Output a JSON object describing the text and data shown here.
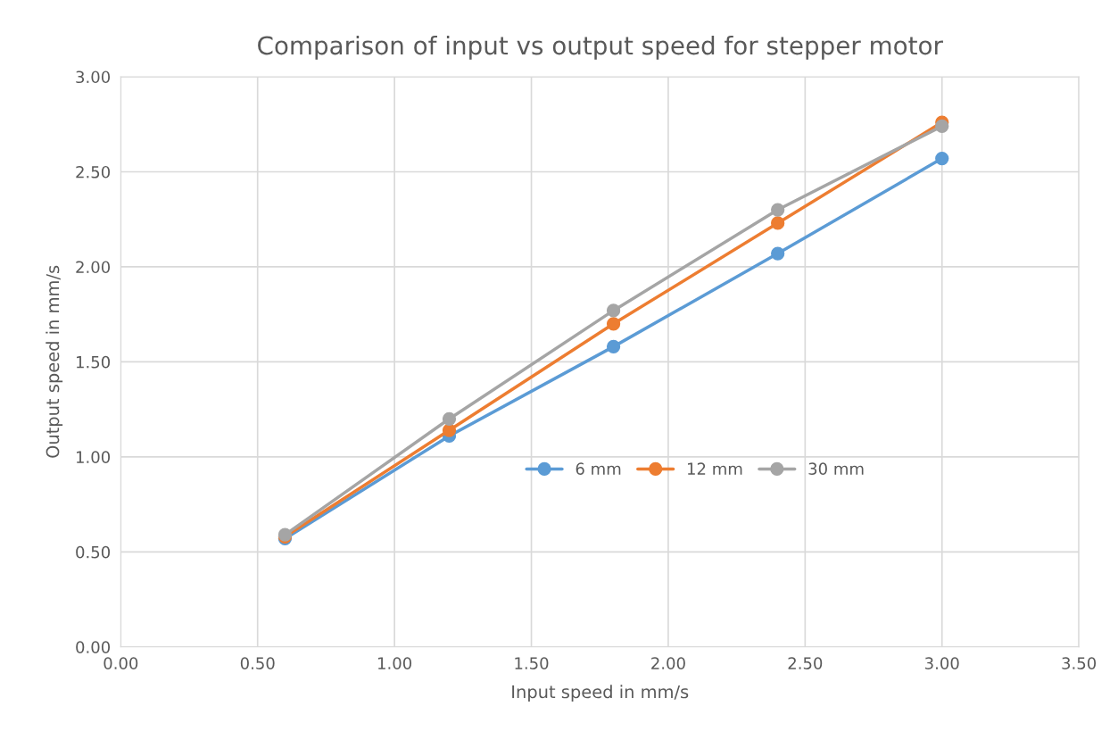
{
  "chart_data": {
    "type": "line",
    "title": "Comparison of input vs output speed for stepper motor",
    "xlabel": "Input speed in mm/s",
    "ylabel": "Output speed in mm/s",
    "x": [
      0.6,
      1.2,
      1.8,
      2.4,
      3.0
    ],
    "series": [
      {
        "name": "6 mm",
        "color": "#5b9bd5",
        "values": [
          0.57,
          1.11,
          1.58,
          2.07,
          2.57
        ]
      },
      {
        "name": "12 mm",
        "color": "#ed7d31",
        "values": [
          0.58,
          1.14,
          1.7,
          2.23,
          2.76
        ]
      },
      {
        "name": "30 mm",
        "color": "#a5a5a5",
        "values": [
          0.59,
          1.2,
          1.77,
          2.3,
          2.74
        ]
      }
    ],
    "xlim": [
      0,
      3.5
    ],
    "ylim": [
      0,
      3
    ],
    "xticks": [
      {
        "value": 0,
        "label": "0.00"
      },
      {
        "value": 0.5,
        "label": "0.50"
      },
      {
        "value": 1,
        "label": "1.00"
      },
      {
        "value": 1.5,
        "label": "1.50"
      },
      {
        "value": 2,
        "label": "2.00"
      },
      {
        "value": 2.5,
        "label": "2.50"
      },
      {
        "value": 3,
        "label": "3.00"
      },
      {
        "value": 3.5,
        "label": "3.50"
      }
    ],
    "yticks": [
      {
        "value": 0,
        "label": "0.00"
      },
      {
        "value": 0.5,
        "label": "0.50"
      },
      {
        "value": 1,
        "label": "1.00"
      },
      {
        "value": 1.5,
        "label": "1.50"
      },
      {
        "value": 2,
        "label": "2.00"
      },
      {
        "value": 2.5,
        "label": "2.50"
      },
      {
        "value": 3,
        "label": "3.00"
      }
    ],
    "grid": true,
    "legend": "center",
    "marker": "circle",
    "line_style": "solid"
  }
}
